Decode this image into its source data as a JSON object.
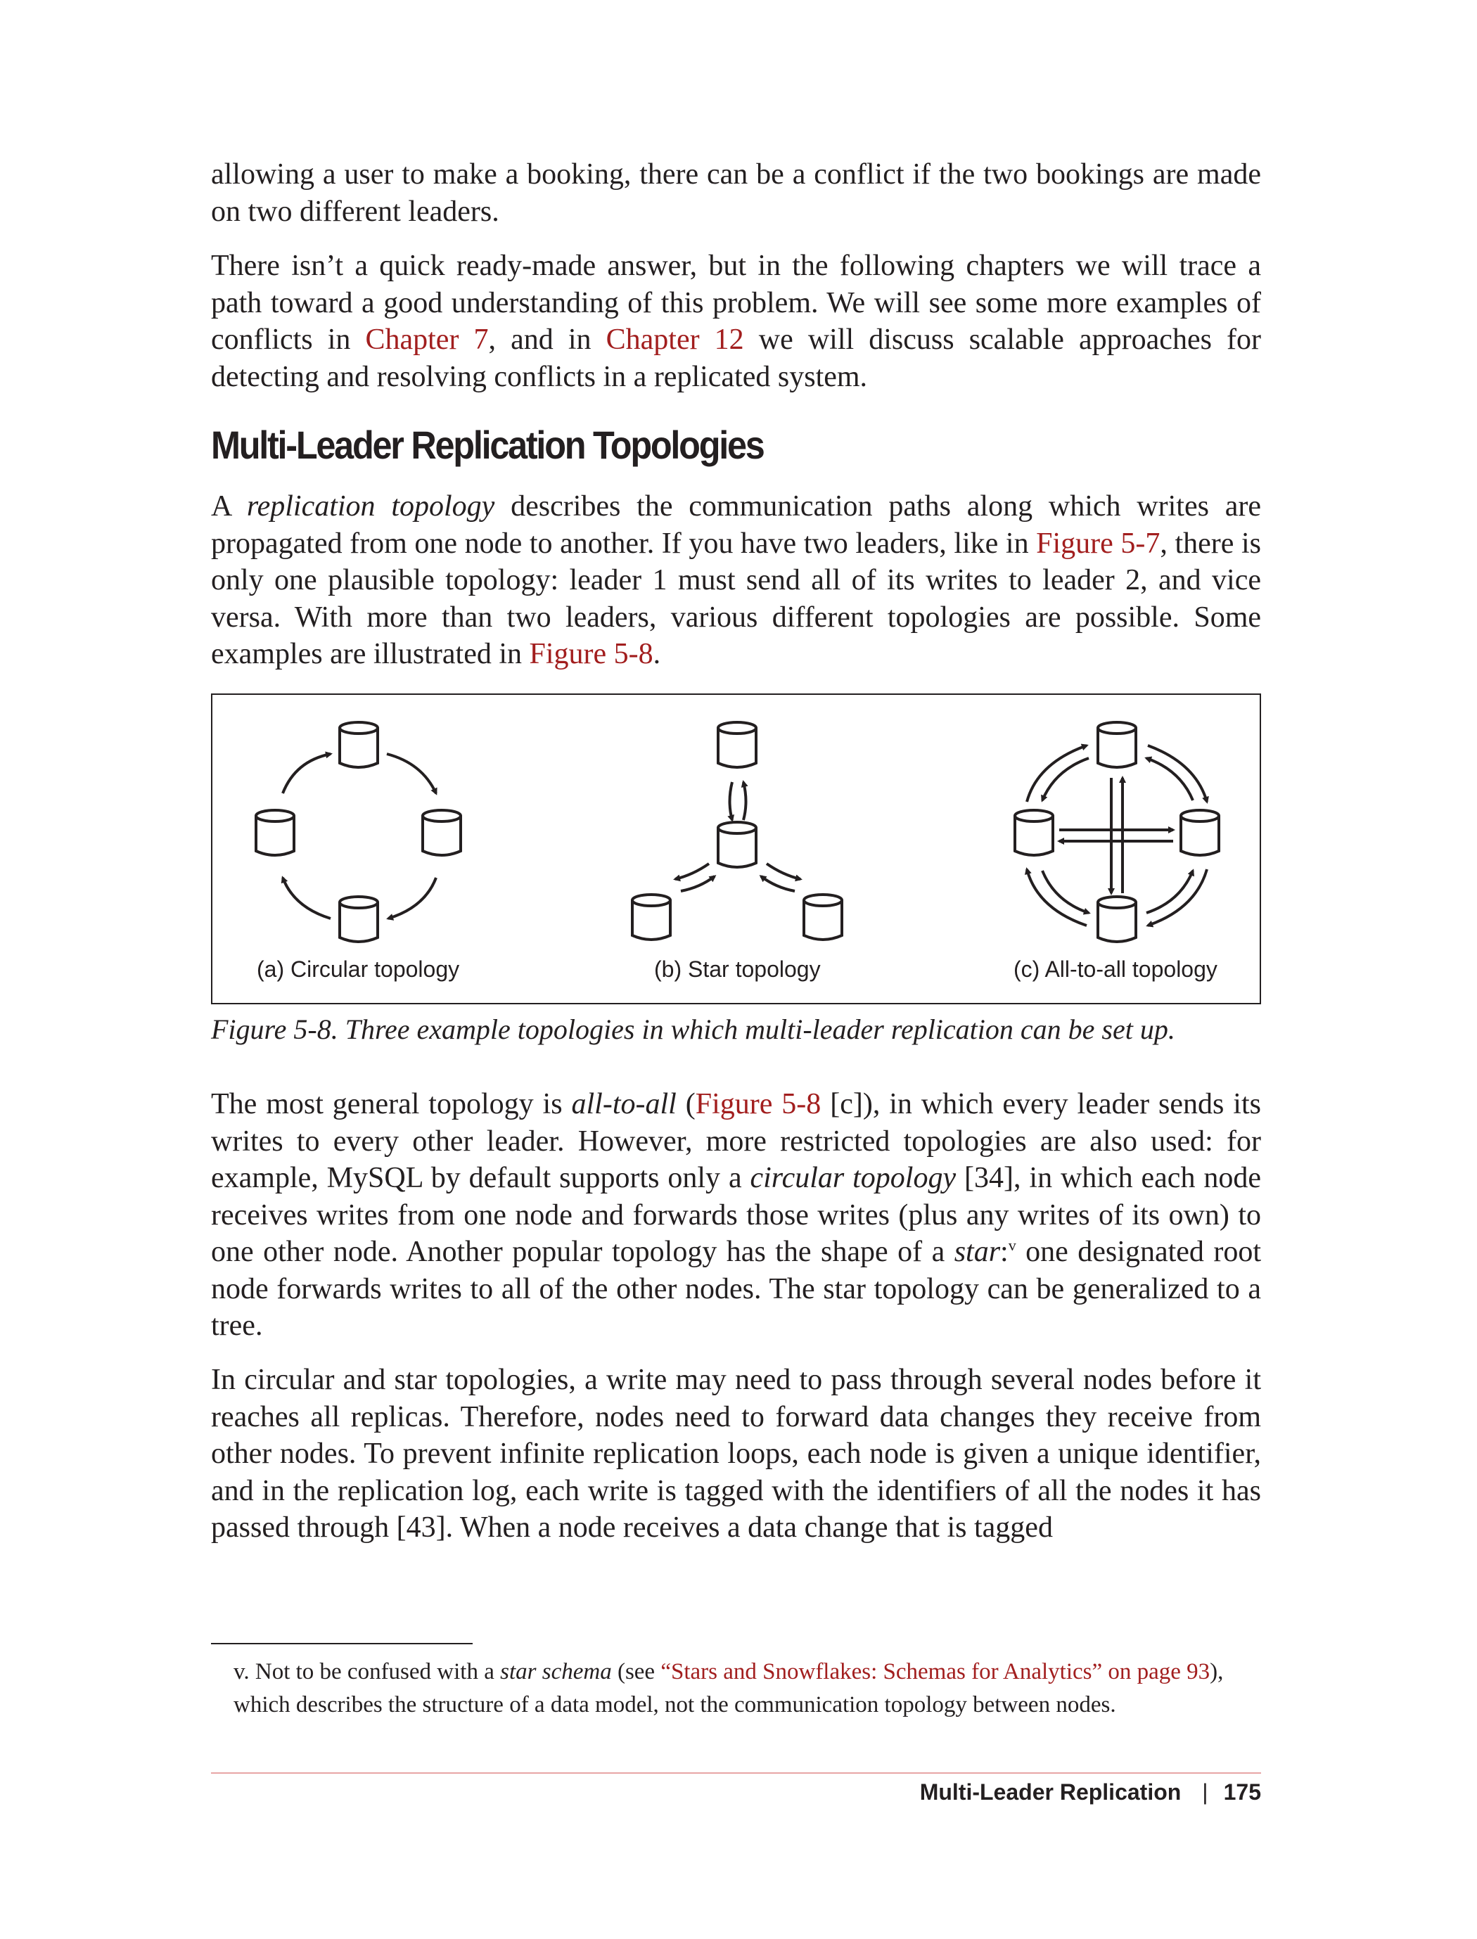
{
  "para1": {
    "text": "allowing a user to make a booking, there can be a conflict if the two bookings are made on two different leaders."
  },
  "para2": {
    "t1": "There isn’t a quick ready-made answer, but in the following chapters we will trace a path toward a good understanding of this problem. We will see some more examples of conflicts in ",
    "link1": "Chapter 7",
    "t2": ", and in ",
    "link2": "Chapter 12",
    "t3": " we will discuss scalable approaches for detecting and resolving conflicts in a replicated system."
  },
  "section_heading": "Multi-Leader Replication Topologies",
  "para3": {
    "t1": "A ",
    "em1": "replication topology",
    "t2": " describes the communication paths along which writes are propagated from one node to another. If you have two leaders, like in ",
    "link1": "Figure 5-7",
    "t3": ", there is only one plausible topology: leader 1 must send all of its writes to leader 2, and vice versa. With more than two leaders, various different topologies are possible. Some examples are illustrated in ",
    "link2": "Figure 5-8",
    "t4": "."
  },
  "figure": {
    "label_a": "(a) Circular topology",
    "label_b": "(b) Star topology",
    "label_c": "(c) All-to-all topology",
    "caption": "Figure 5-8. Three example topologies in which multi-leader replication can be set up."
  },
  "para4": {
    "t1": "The most general topology is ",
    "em1": "all-to-all",
    "t2": " (",
    "link1": "Figure 5-8",
    "t3": " [c]), in which every leader sends its writes to every other leader. However, more restricted topologies are also used: for example, MySQL by default supports only a ",
    "em2": "circular topology",
    "t4": " [34], in which each node receives writes from one node and forwards those writes (plus any writes of its own) to one other node. Another popular topology has the shape of a ",
    "em3": "star",
    "t5": ":",
    "sup": "v",
    "t6": " one designated root node forwards writes to all of the other nodes. The star topology can be generalized to a tree."
  },
  "para5": {
    "text": "In circular and star topologies, a write may need to pass through several nodes before it reaches all replicas. Therefore, nodes need to forward data changes they receive from other nodes. To prevent infinite replication loops, each node is given a unique identifier, and in the replication log, each write is tagged with the identifiers of all the nodes it has passed through [43]. When a node receives a data change that is tagged"
  },
  "footnote": {
    "t1": "v.  Not to be confused with a ",
    "em1": "star schema",
    "t2": " (see ",
    "link1": "“Stars and Snowflakes: Schemas for Analytics” on page 93",
    "t3": "), which describes the structure of a data model, not the communication topology between nodes."
  },
  "footer": {
    "chapter": "Multi-Leader Replication",
    "page": "175"
  },
  "colors": {
    "link": "#a21e1e",
    "text": "#231f20",
    "footer_rule": "#e7a5a5"
  }
}
